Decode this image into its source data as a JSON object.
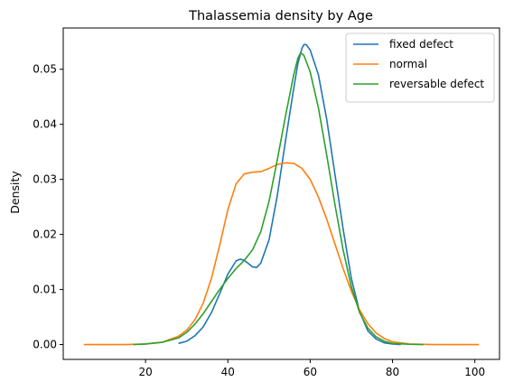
{
  "chart_data": {
    "type": "line",
    "title": "Thalassemia density by Age",
    "xlabel": "",
    "ylabel": "Density",
    "xlim": [
      0,
      106
    ],
    "ylim": [
      -0.0027,
      0.0575
    ],
    "xticks": [
      20,
      40,
      60,
      80,
      100
    ],
    "yticks": [
      0.0,
      0.01,
      0.02,
      0.03,
      0.04,
      0.05
    ],
    "ytick_labels": [
      "0.00",
      "0.01",
      "0.02",
      "0.03",
      "0.04",
      "0.05"
    ],
    "grid": false,
    "legend_position": "top-right",
    "series": [
      {
        "name": "fixed defect",
        "color": "#1f77b4",
        "points": [
          [
            28,
            0.0002
          ],
          [
            30,
            0.0006
          ],
          [
            32,
            0.0016
          ],
          [
            34,
            0.0032
          ],
          [
            36,
            0.0058
          ],
          [
            38,
            0.0092
          ],
          [
            40,
            0.0128
          ],
          [
            42,
            0.0152
          ],
          [
            43,
            0.0155
          ],
          [
            44,
            0.0153
          ],
          [
            45,
            0.0147
          ],
          [
            46,
            0.0141
          ],
          [
            47,
            0.014
          ],
          [
            48,
            0.0148
          ],
          [
            50,
            0.019
          ],
          [
            52,
            0.027
          ],
          [
            54,
            0.037
          ],
          [
            56,
            0.0465
          ],
          [
            57,
            0.051
          ],
          [
            58,
            0.0538
          ],
          [
            58.5,
            0.0545
          ],
          [
            59,
            0.0545
          ],
          [
            60,
            0.0535
          ],
          [
            62,
            0.049
          ],
          [
            64,
            0.041
          ],
          [
            66,
            0.031
          ],
          [
            68,
            0.021
          ],
          [
            70,
            0.012
          ],
          [
            72,
            0.006
          ],
          [
            74,
            0.0025
          ],
          [
            76,
            0.001
          ],
          [
            78,
            0.0003
          ],
          [
            80,
            0.0001
          ],
          [
            82,
            0.0
          ]
        ]
      },
      {
        "name": "normal",
        "color": "#ff7f0e",
        "points": [
          [
            5,
            0.0
          ],
          [
            10,
            0.0
          ],
          [
            15,
            0.0
          ],
          [
            20,
            0.0001
          ],
          [
            24,
            0.0004
          ],
          [
            28,
            0.0015
          ],
          [
            30,
            0.0026
          ],
          [
            32,
            0.0045
          ],
          [
            34,
            0.0075
          ],
          [
            36,
            0.012
          ],
          [
            38,
            0.018
          ],
          [
            40,
            0.0245
          ],
          [
            42,
            0.0292
          ],
          [
            44,
            0.031
          ],
          [
            46,
            0.0313
          ],
          [
            48,
            0.0314
          ],
          [
            50,
            0.032
          ],
          [
            52,
            0.0327
          ],
          [
            54,
            0.033
          ],
          [
            56,
            0.0329
          ],
          [
            58,
            0.032
          ],
          [
            60,
            0.03
          ],
          [
            62,
            0.0268
          ],
          [
            64,
            0.0228
          ],
          [
            66,
            0.0183
          ],
          [
            68,
            0.0138
          ],
          [
            70,
            0.0097
          ],
          [
            72,
            0.0063
          ],
          [
            74,
            0.0038
          ],
          [
            76,
            0.0021
          ],
          [
            78,
            0.0011
          ],
          [
            80,
            0.0005
          ],
          [
            84,
            0.0001
          ],
          [
            90,
            0.0
          ],
          [
            101,
            0.0
          ]
        ]
      },
      {
        "name": "reversable defect",
        "color": "#2ca02c",
        "points": [
          [
            17,
            0.0
          ],
          [
            20,
            0.0001
          ],
          [
            24,
            0.0004
          ],
          [
            28,
            0.0012
          ],
          [
            30,
            0.0022
          ],
          [
            32,
            0.0037
          ],
          [
            34,
            0.0056
          ],
          [
            36,
            0.0078
          ],
          [
            38,
            0.01
          ],
          [
            40,
            0.012
          ],
          [
            42,
            0.0138
          ],
          [
            44,
            0.0153
          ],
          [
            46,
            0.0172
          ],
          [
            48,
            0.0205
          ],
          [
            50,
            0.026
          ],
          [
            52,
            0.0335
          ],
          [
            54,
            0.0415
          ],
          [
            56,
            0.049
          ],
          [
            57,
            0.052
          ],
          [
            57.7,
            0.053
          ],
          [
            58.5,
            0.0525
          ],
          [
            60,
            0.0495
          ],
          [
            62,
            0.043
          ],
          [
            64,
            0.0345
          ],
          [
            66,
            0.0255
          ],
          [
            68,
            0.0172
          ],
          [
            70,
            0.0105
          ],
          [
            72,
            0.0058
          ],
          [
            74,
            0.003
          ],
          [
            76,
            0.0014
          ],
          [
            78,
            0.0006
          ],
          [
            80,
            0.0002
          ],
          [
            84,
            5e-05
          ],
          [
            87.5,
            0.0
          ]
        ]
      }
    ]
  }
}
